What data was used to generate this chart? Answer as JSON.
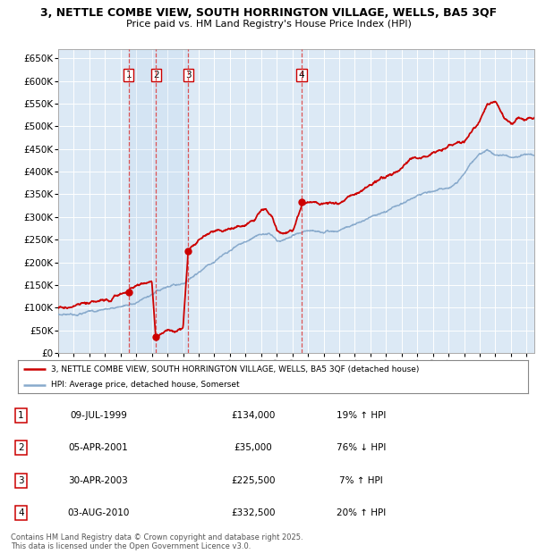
{
  "title_line1": "3, NETTLE COMBE VIEW, SOUTH HORRINGTON VILLAGE, WELLS, BA5 3QF",
  "title_line2": "Price paid vs. HM Land Registry's House Price Index (HPI)",
  "ylim": [
    0,
    670000
  ],
  "yticks": [
    0,
    50000,
    100000,
    150000,
    200000,
    250000,
    300000,
    350000,
    400000,
    450000,
    500000,
    550000,
    600000,
    650000
  ],
  "ytick_labels": [
    "£0",
    "£50K",
    "£100K",
    "£150K",
    "£200K",
    "£250K",
    "£300K",
    "£350K",
    "£400K",
    "£450K",
    "£500K",
    "£550K",
    "£600K",
    "£650K"
  ],
  "background_color": "#ffffff",
  "plot_bg_color": "#dce9f5",
  "grid_color": "#ffffff",
  "red_line_color": "#cc0000",
  "blue_line_color": "#88aacc",
  "sale_marker_color": "#cc0000",
  "dashed_line_color": "#dd4444",
  "purchase_events": [
    {
      "label": "1",
      "date_str": "09-JUL-1999",
      "price": 134000,
      "x_year": 1999.52
    },
    {
      "label": "2",
      "date_str": "05-APR-2001",
      "price": 35000,
      "x_year": 2001.26
    },
    {
      "label": "3",
      "date_str": "30-APR-2003",
      "price": 225500,
      "x_year": 2003.33
    },
    {
      "label": "4",
      "date_str": "03-AUG-2010",
      "price": 332500,
      "x_year": 2010.59
    }
  ],
  "legend_property": "3, NETTLE COMBE VIEW, SOUTH HORRINGTON VILLAGE, WELLS, BA5 3QF (detached house)",
  "legend_hpi": "HPI: Average price, detached house, Somerset",
  "table_rows": [
    {
      "num": "1",
      "date": "09-JUL-1999",
      "price": "£134,000",
      "change": "19% ↑ HPI"
    },
    {
      "num": "2",
      "date": "05-APR-2001",
      "price": "£35,000",
      "change": "76% ↓ HPI"
    },
    {
      "num": "3",
      "date": "30-APR-2003",
      "price": "£225,500",
      "change": "7% ↑ HPI"
    },
    {
      "num": "4",
      "date": "03-AUG-2010",
      "price": "£332,500",
      "change": "20% ↑ HPI"
    }
  ],
  "footnote": "Contains HM Land Registry data © Crown copyright and database right 2025.\nThis data is licensed under the Open Government Licence v3.0.",
  "xmin": 1995.0,
  "xmax": 2025.5,
  "hpi_anchors": [
    [
      1995.0,
      85000
    ],
    [
      1996.0,
      88000
    ],
    [
      1997.0,
      92000
    ],
    [
      1998.0,
      97000
    ],
    [
      1999.0,
      102000
    ],
    [
      2000.0,
      112000
    ],
    [
      2001.0,
      125000
    ],
    [
      2002.0,
      140000
    ],
    [
      2003.0,
      152000
    ],
    [
      2004.0,
      180000
    ],
    [
      2005.0,
      205000
    ],
    [
      2006.0,
      225000
    ],
    [
      2007.0,
      245000
    ],
    [
      2007.8,
      260000
    ],
    [
      2008.5,
      265000
    ],
    [
      2009.0,
      248000
    ],
    [
      2009.5,
      252000
    ],
    [
      2010.0,
      258000
    ],
    [
      2011.0,
      265000
    ],
    [
      2011.5,
      268000
    ],
    [
      2012.0,
      262000
    ],
    [
      2013.0,
      270000
    ],
    [
      2014.0,
      285000
    ],
    [
      2015.0,
      300000
    ],
    [
      2016.0,
      315000
    ],
    [
      2017.0,
      330000
    ],
    [
      2018.0,
      345000
    ],
    [
      2019.0,
      355000
    ],
    [
      2020.0,
      362000
    ],
    [
      2020.5,
      375000
    ],
    [
      2021.0,
      395000
    ],
    [
      2022.0,
      440000
    ],
    [
      2022.5,
      450000
    ],
    [
      2023.0,
      440000
    ],
    [
      2024.0,
      435000
    ],
    [
      2025.0,
      440000
    ]
  ],
  "prop_anchors": [
    [
      1995.0,
      99000
    ],
    [
      1996.0,
      102000
    ],
    [
      1997.0,
      108000
    ],
    [
      1998.0,
      115000
    ],
    [
      1999.0,
      127000
    ],
    [
      1999.52,
      134000
    ],
    [
      1999.6,
      142000
    ],
    [
      2000.0,
      148000
    ],
    [
      2000.5,
      155000
    ],
    [
      2001.0,
      160000
    ],
    [
      2001.26,
      35000
    ],
    [
      2001.35,
      37000
    ],
    [
      2001.5,
      42000
    ],
    [
      2001.8,
      46000
    ],
    [
      2002.0,
      50000
    ],
    [
      2002.5,
      51000
    ],
    [
      2003.0,
      52000
    ],
    [
      2003.33,
      225500
    ],
    [
      2003.5,
      232000
    ],
    [
      2004.0,
      248000
    ],
    [
      2004.5,
      260000
    ],
    [
      2005.0,
      265000
    ],
    [
      2006.0,
      272000
    ],
    [
      2007.0,
      282000
    ],
    [
      2007.5,
      292000
    ],
    [
      2008.0,
      315000
    ],
    [
      2008.3,
      320000
    ],
    [
      2008.7,
      298000
    ],
    [
      2009.0,
      268000
    ],
    [
      2009.5,
      262000
    ],
    [
      2010.0,
      268000
    ],
    [
      2010.59,
      332500
    ],
    [
      2011.0,
      335000
    ],
    [
      2011.5,
      332000
    ],
    [
      2012.0,
      330000
    ],
    [
      2013.0,
      333000
    ],
    [
      2014.0,
      352000
    ],
    [
      2015.0,
      370000
    ],
    [
      2016.0,
      382000
    ],
    [
      2017.0,
      402000
    ],
    [
      2017.5,
      418000
    ],
    [
      2018.0,
      430000
    ],
    [
      2018.5,
      435000
    ],
    [
      2019.0,
      442000
    ],
    [
      2020.0,
      448000
    ],
    [
      2021.0,
      462000
    ],
    [
      2022.0,
      510000
    ],
    [
      2022.5,
      548000
    ],
    [
      2023.0,
      547000
    ],
    [
      2023.5,
      522000
    ],
    [
      2024.0,
      505000
    ],
    [
      2024.5,
      518000
    ],
    [
      2025.0,
      515000
    ]
  ]
}
